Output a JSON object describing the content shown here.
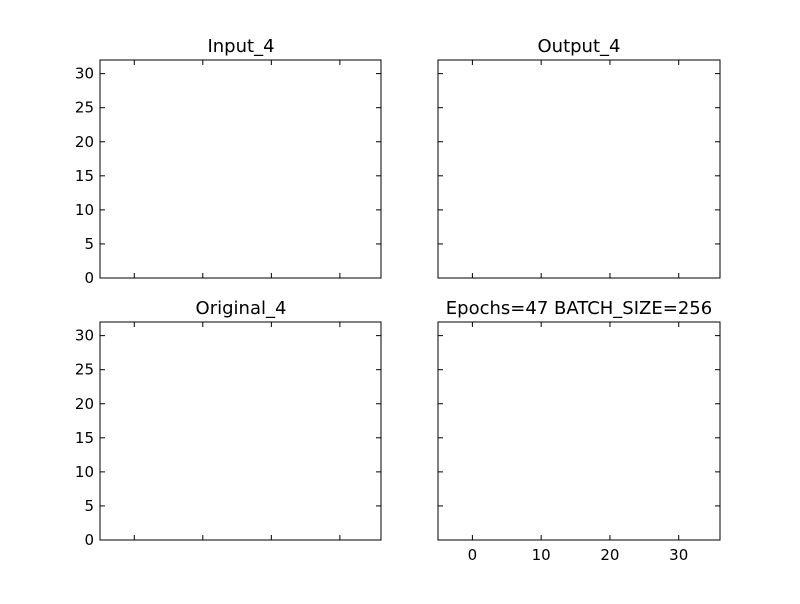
{
  "chart_data": [
    {
      "type": "image",
      "title": "Input_4",
      "xticks": [],
      "yticks": [
        "0",
        "5",
        "10",
        "15",
        "20",
        "25",
        "30"
      ],
      "xlim": [
        -5,
        36
      ],
      "ylim": [
        32,
        0
      ],
      "image_extent": [
        -0.5,
        31.5
      ],
      "image_colors": {
        "sky": "#8f8f8f",
        "fence": "#d6d6d6",
        "horse_dark": "#2a2a2a",
        "blaze": "#e2e2e2"
      }
    },
    {
      "type": "image",
      "title": "Output_4",
      "xticks": [],
      "yticks": [],
      "xlim": [
        -5,
        36
      ],
      "ylim": [
        32,
        0
      ],
      "image_extent": [
        -0.5,
        31.5
      ],
      "image_colors": {
        "sky": "#8c8870",
        "fence": "#d8d2b8",
        "horse_dark": "#2c2518",
        "blaze": "#e2dcc6"
      }
    },
    {
      "type": "image",
      "title": "Original_4",
      "xticks": [],
      "yticks": [
        "0",
        "5",
        "10",
        "15",
        "20",
        "25",
        "30"
      ],
      "xlim": [
        -5,
        36
      ],
      "ylim": [
        32,
        0
      ],
      "image_extent": [
        -0.5,
        31.5
      ],
      "image_colors": {
        "sky": "#5f9474",
        "fence": "#d0ddd0",
        "horse_dark": "#6b2a16",
        "blaze": "#d9b79c",
        "body": "#c8703e"
      }
    },
    {
      "type": "empty",
      "title": "Epochs=47 BATCH_SIZE=256",
      "xticks": [
        "0",
        "10",
        "20",
        "30"
      ],
      "yticks": [],
      "xlim": [
        -5,
        36
      ],
      "ylim": [
        32,
        0
      ]
    }
  ]
}
